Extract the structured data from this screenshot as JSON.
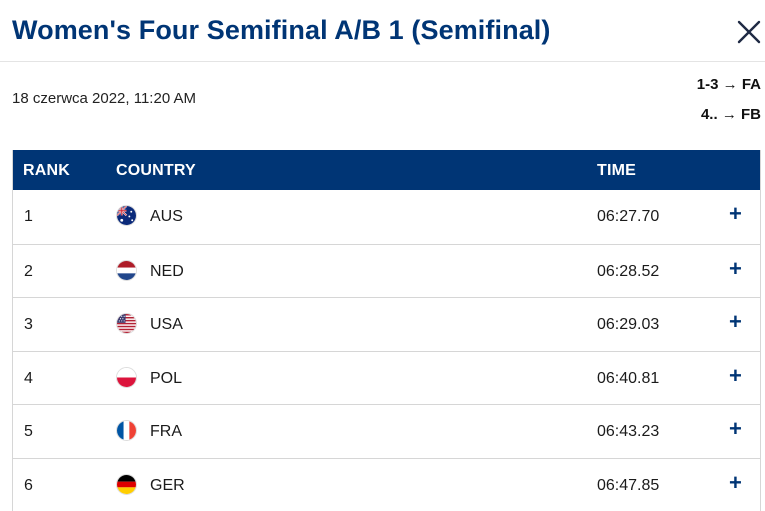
{
  "header": {
    "title": "Women's Four Semifinal A/B 1 (Semifinal)"
  },
  "date": "18 czerwca 2022, 11:20 AM",
  "legend": [
    {
      "range": "1-3",
      "arrow": "→",
      "target": "FA"
    },
    {
      "range": "4..",
      "arrow": "→",
      "target": "FB"
    }
  ],
  "table": {
    "headers": {
      "rank": "RANK",
      "country": "COUNTRY",
      "time": "TIME"
    },
    "rows": [
      {
        "rank": "1",
        "code": "AUS",
        "time": "06:27.70",
        "flag": "australia-flag-icon"
      },
      {
        "rank": "2",
        "code": "NED",
        "time": "06:28.52",
        "flag": "netherlands-flag-icon"
      },
      {
        "rank": "3",
        "code": "USA",
        "time": "06:29.03",
        "flag": "usa-flag-icon"
      },
      {
        "rank": "4",
        "code": "POL",
        "time": "06:40.81",
        "flag": "poland-flag-icon"
      },
      {
        "rank": "5",
        "code": "FRA",
        "time": "06:43.23",
        "flag": "france-flag-icon"
      },
      {
        "rank": "6",
        "code": "GER",
        "time": "06:47.85",
        "flag": "germany-flag-icon"
      }
    ],
    "expand_symbol": "+"
  },
  "colors": {
    "brand": "#003575",
    "border": "#d6d6d6"
  }
}
